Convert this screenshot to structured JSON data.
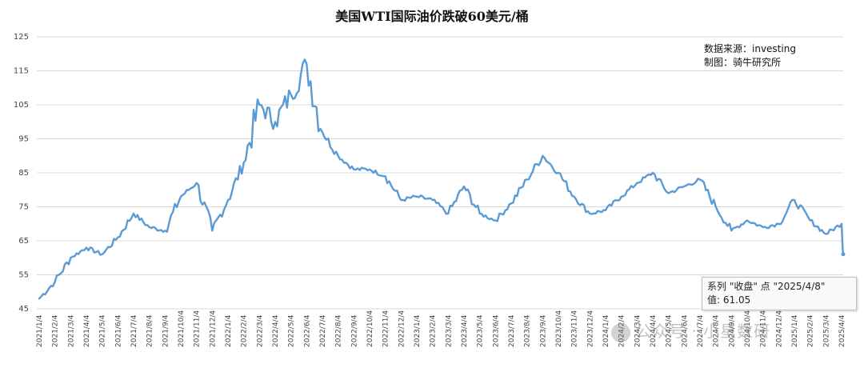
{
  "chart_data": {
    "type": "line",
    "title": "美国WTI国际油价跌破60美元/桶",
    "xlabel": "",
    "ylabel": "",
    "ylim": [
      45,
      125
    ],
    "yticks": [
      45,
      55,
      65,
      75,
      85,
      95,
      105,
      115,
      125
    ],
    "grid": true,
    "legend": "none",
    "x": [
      "2021/1/4",
      "2021/2/4",
      "2021/3/4",
      "2021/4/4",
      "2021/5/4",
      "2021/6/4",
      "2021/7/4",
      "2021/8/4",
      "2021/9/4",
      "2021/10/4",
      "2021/11/4",
      "2021/12/4",
      "2022/1/4",
      "2022/2/4",
      "2022/3/4",
      "2022/4/4",
      "2022/5/4",
      "2022/6/4",
      "2022/7/4",
      "2022/8/4",
      "2022/9/4",
      "2022/10/4",
      "2022/11/4",
      "2022/12/4",
      "2023/1/4",
      "2023/2/4",
      "2023/3/4",
      "2023/4/4",
      "2023/5/4",
      "2023/6/4",
      "2023/7/4",
      "2023/8/4",
      "2023/9/4",
      "2023/10/4",
      "2023/11/4",
      "2023/12/4",
      "2024/1/4",
      "2024/2/4",
      "2024/3/4",
      "2024/4/4",
      "2024/5/4",
      "2024/6/4",
      "2024/7/4",
      "2024/8/4",
      "2024/9/4",
      "2024/10/4",
      "2024/11/4",
      "2024/12/4",
      "2025/1/4",
      "2025/2/4",
      "2025/3/4",
      "2025/4/4",
      "2025/4/8"
    ],
    "values": [
      48,
      53,
      60,
      63,
      61,
      66,
      73,
      69,
      68,
      78,
      82,
      68,
      77,
      88,
      105,
      100,
      108,
      117,
      97,
      90,
      86,
      86,
      84,
      77,
      78,
      77,
      73,
      81,
      73,
      71,
      76,
      83,
      90,
      85,
      78,
      73,
      74,
      78,
      82,
      85,
      79,
      81,
      83,
      75,
      68,
      71,
      69,
      70,
      77,
      71,
      67,
      70,
      61.05
    ],
    "series": [
      {
        "color": "#5b9bd5"
      }
    ]
  },
  "note": {
    "source": "数据来源：investing",
    "author": "制图：骑牛研究所"
  },
  "tooltip": {
    "line1": "系列 \"收盘\" 点 \"2025/4/8\"",
    "line2": "值: 61.05"
  },
  "watermark": "公众号 · 小星数研"
}
